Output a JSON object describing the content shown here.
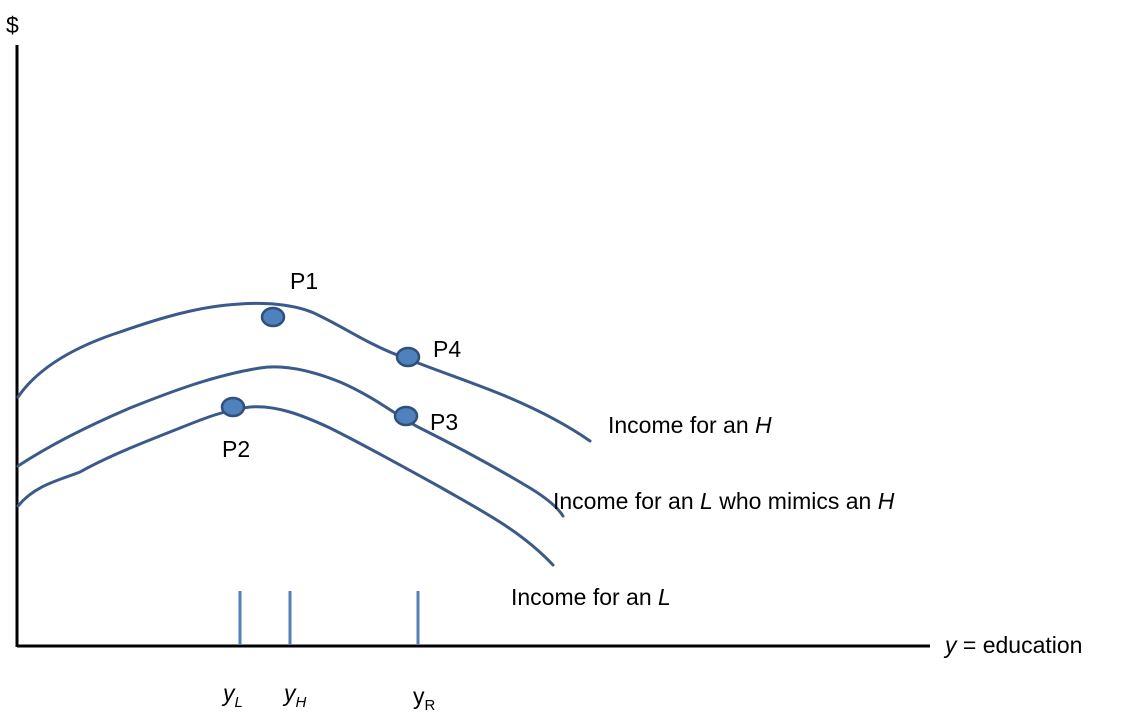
{
  "axes": {
    "y_label": "$",
    "x_label_var": "y",
    "x_label_rest": " = education",
    "line_color": "#000000"
  },
  "curves": {
    "color": "#3a5a8c",
    "h": {
      "label_pre": "Income for an ",
      "label_var": "H",
      "label_post": ""
    },
    "mimic": {
      "label_pre": "Income for an ",
      "label_var": "L",
      "label_mid": " who mimics an ",
      "label_var2": "H"
    },
    "l": {
      "label_pre": "Income for an ",
      "label_var": "L"
    }
  },
  "points": {
    "fill": "#4f81bd",
    "stroke": "#2f4f7c",
    "p1": "P1",
    "p2": "P2",
    "p3": "P3",
    "p4": "P4"
  },
  "ticks": {
    "color": "#4f81bd",
    "yL": {
      "main": "y",
      "sub": "L",
      "italic": true
    },
    "yH": {
      "main": "y",
      "sub": "H",
      "italic": true
    },
    "yR": {
      "main": "y",
      "sub": "R",
      "italic": false
    }
  }
}
